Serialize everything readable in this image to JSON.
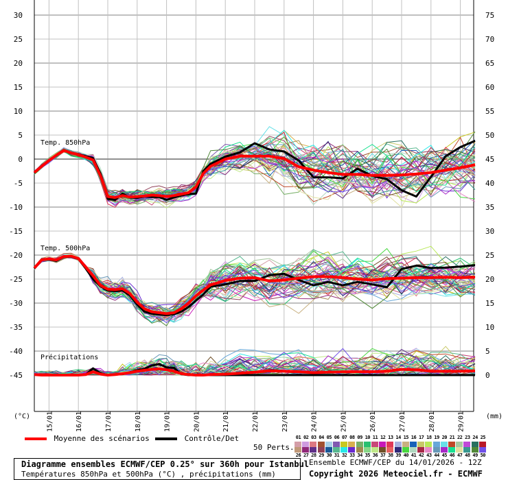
{
  "chart_data": {
    "type": "line",
    "title": "Diagramme ensembles ECMWF/CEP 0.25° sur 360h pour Istanbul",
    "subtitle": "Températures 850hPa et 500hPa (°C) , précipitations (mm)",
    "run": "Ensemble ECMWF/CEP du 14/01/2026 - 12Z",
    "copyright": "Copyright 2026 Meteociel.fr - ECMWF",
    "left_axis": {
      "label": "(°C)",
      "ticks": [
        30,
        25,
        20,
        15,
        10,
        5,
        0,
        -5,
        -10,
        -15,
        -20,
        -25,
        -30,
        -35,
        -40,
        -45
      ],
      "range": [
        -45,
        30
      ]
    },
    "right_axis": {
      "label": "(mm)",
      "ticks": [
        75,
        70,
        65,
        60,
        55,
        50,
        45,
        40,
        35,
        30,
        25,
        20,
        15,
        10,
        5,
        0
      ],
      "range": [
        0,
        75
      ]
    },
    "x_ticks": [
      "15/01",
      "16/01",
      "17/01",
      "18/01",
      "19/01",
      "20/01",
      "21/01",
      "22/01",
      "23/01",
      "24/01",
      "25/01",
      "26/01",
      "27/01",
      "28/01",
      "29/01"
    ],
    "panel_labels": [
      "Temp. 850hPa",
      "Temp. 500hPa",
      "Précipitations"
    ],
    "grid": true,
    "x_days": [
      0,
      0.25,
      0.5,
      0.75,
      1,
      1.25,
      1.5,
      1.75,
      2,
      2.25,
      2.5,
      2.75,
      3,
      3.25,
      3.5,
      3.75,
      4,
      4.25,
      4.5,
      4.75,
      5,
      5.25,
      5.5,
      5.75,
      6,
      6.5,
      7,
      7.5,
      8,
      8.5,
      9,
      9.5,
      10,
      10.5,
      11,
      11.5,
      12,
      12.5,
      13,
      13.5,
      14,
      14.5,
      15
    ],
    "series": [
      {
        "name": "Moyenne des scénarios - Temp. 850hPa",
        "color": "#ff0000",
        "values": [
          -2.8,
          -1.5,
          -0.3,
          0.8,
          1.8,
          1.3,
          0.9,
          0.4,
          -0.2,
          -3.5,
          -7.8,
          -8.0,
          -7.6,
          -7.9,
          -7.8,
          -7.7,
          -7.5,
          -7.6,
          -7.8,
          -7.6,
          -7.3,
          -7.0,
          -5.8,
          -3.0,
          -1.5,
          0.0,
          0.6,
          0.6,
          0.6,
          0.1,
          -1.6,
          -2.3,
          -2.8,
          -3.2,
          -3.2,
          -3.4,
          -3.4,
          -3.3,
          -3.1,
          -2.8,
          -2.3,
          -1.8,
          -1.2
        ]
      },
      {
        "name": "Contrôle/Det - Temp. 850hPa",
        "color": "#000000",
        "values": [
          -2.9,
          -1.6,
          -0.2,
          0.7,
          1.8,
          1.2,
          1.0,
          0.6,
          0.2,
          -3.0,
          -8.3,
          -8.5,
          -7.2,
          -8.0,
          -8.1,
          -7.8,
          -7.9,
          -7.9,
          -8.5,
          -8.0,
          -7.6,
          -7.3,
          -7.2,
          -2.5,
          -1.0,
          0.5,
          1.4,
          3.3,
          2.0,
          1.6,
          -0.3,
          -3.8,
          -3.8,
          -4.0,
          -2.0,
          -3.5,
          -4.2,
          -6.5,
          -7.8,
          -3.7,
          0.6,
          2.5,
          3.8
        ]
      },
      {
        "name": "Moyenne des scénarios - Temp. 500hPa",
        "color": "#ff0000",
        "values": [
          -22.7,
          -21.0,
          -20.8,
          -21.0,
          -20.3,
          -20.2,
          -20.7,
          -22.5,
          -24.3,
          -26.3,
          -27.1,
          -27.2,
          -27.0,
          -28.0,
          -29.8,
          -31.2,
          -31.8,
          -32.0,
          -32.2,
          -32.0,
          -31.2,
          -30.0,
          -28.5,
          -27.3,
          -26.2,
          -25.3,
          -24.8,
          -24.7,
          -25.4,
          -25.2,
          -24.8,
          -24.5,
          -24.5,
          -24.7,
          -25.0,
          -25.2,
          -24.9,
          -24.8,
          -24.7,
          -24.7,
          -24.6,
          -24.7,
          -24.6
        ]
      },
      {
        "name": "Contrôle/Det - Temp. 500hPa",
        "color": "#000000",
        "values": [
          -22.8,
          -21.0,
          -20.9,
          -21.2,
          -20.4,
          -20.3,
          -20.8,
          -22.8,
          -25.0,
          -26.5,
          -27.4,
          -27.5,
          -27.4,
          -28.4,
          -30.3,
          -31.8,
          -32.2,
          -32.4,
          -32.5,
          -32.3,
          -31.8,
          -30.8,
          -29.5,
          -28.2,
          -26.6,
          -26.1,
          -25.4,
          -25.4,
          -24.2,
          -23.9,
          -25.2,
          -26.3,
          -25.6,
          -26.3,
          -25.6,
          -26.1,
          -26.7,
          -22.9,
          -22.2,
          -22.7,
          -22.6,
          -22.4,
          -22.1
        ]
      },
      {
        "name": "Moyenne des scénarios - Précipitations (mm)",
        "color": "#ff0000",
        "values": [
          0.1,
          0.0,
          0.0,
          0.0,
          0.0,
          0.0,
          0.0,
          0.1,
          0.7,
          0.2,
          0.0,
          0.1,
          0.3,
          0.5,
          0.8,
          1.0,
          1.2,
          1.3,
          1.1,
          0.8,
          0.3,
          0.1,
          0.0,
          0.0,
          0.1,
          0.2,
          0.4,
          0.6,
          0.9,
          0.8,
          0.7,
          0.5,
          0.6,
          0.7,
          0.7,
          0.7,
          0.8,
          1.2,
          1.1,
          0.8,
          0.8,
          0.8,
          0.9
        ]
      },
      {
        "name": "Contrôle/Det - Précipitations (mm)",
        "color": "#000000",
        "values": [
          0.1,
          0.0,
          0.0,
          0.0,
          0.0,
          0.0,
          0.0,
          0.1,
          1.4,
          0.4,
          0.0,
          0.1,
          0.2,
          0.6,
          1.0,
          1.3,
          2.0,
          2.3,
          1.6,
          1.5,
          0.2,
          0.0,
          0.0,
          0.0,
          0.0,
          0.0,
          0.0,
          0.0,
          0.0,
          0.0,
          0.0,
          0.0,
          0.0,
          0.0,
          0.0,
          0.0,
          0.0,
          0.0,
          0.0,
          0.0,
          0.0,
          0.0,
          0.0
        ]
      }
    ],
    "ensemble_members": 50,
    "legend": [
      {
        "label": "Moyenne des scénarios",
        "color": "#ff0000"
      },
      {
        "label": "Contrôle/Det",
        "color": "#000000"
      }
    ]
  },
  "legend": {
    "mean_label": "Moyenne des scénarios",
    "control_label": "Contrôle/Det",
    "perts_label": "50 Perts.",
    "members_top": [
      "01",
      "02",
      "03",
      "04",
      "05",
      "06",
      "07",
      "08",
      "09",
      "10",
      "11",
      "12",
      "13",
      "14",
      "15",
      "16",
      "17",
      "18",
      "19",
      "20",
      "21",
      "22",
      "23",
      "24",
      "25"
    ],
    "members_bottom": [
      "26",
      "27",
      "28",
      "29",
      "30",
      "31",
      "32",
      "33",
      "34",
      "35",
      "36",
      "37",
      "38",
      "39",
      "40",
      "41",
      "42",
      "43",
      "44",
      "45",
      "46",
      "47",
      "48",
      "49",
      "50"
    ],
    "colors_top": [
      "#d49ea8",
      "#cf9be0",
      "#dd7882",
      "#a05030",
      "#a8d0e8",
      "#8058b0",
      "#c8c820",
      "#d8b050",
      "#78b068",
      "#28c070",
      "#c84878",
      "#c818b8",
      "#e03858",
      "#a8b0e0",
      "#c8b080",
      "#1860b8",
      "#c8c868",
      "#b8e858",
      "#68a8d8",
      "#68e0e8",
      "#c04828",
      "#a8c8a0",
      "#c048d8",
      "#287060",
      "#b81828"
    ],
    "colors_bottom": [
      "#c09878",
      "#902878",
      "#603088",
      "#904058",
      "#185898",
      "#58b890",
      "#28e8e8",
      "#6828d0",
      "#a08850",
      "#88d888",
      "#c0e888",
      "#705028",
      "#e86060",
      "#302878",
      "#48d840",
      "#b0d8c0",
      "#a82848",
      "#e888c8",
      "#6898b8",
      "#a828c8",
      "#18e090",
      "#e0e0a0",
      "#38988f",
      "#508838",
      "#7050e8"
    ]
  },
  "footer": {
    "title": "Diagramme ensembles ECMWF/CEP 0.25° sur 360h pour Istanbul",
    "subtitle": "Températures 850hPa et 500hPa (°C) , précipitations (mm)",
    "run": "Ensemble ECMWF/CEP du 14/01/2026 - 12Z",
    "copyright": "Copyright 2026 Meteociel.fr - ECMWF"
  }
}
